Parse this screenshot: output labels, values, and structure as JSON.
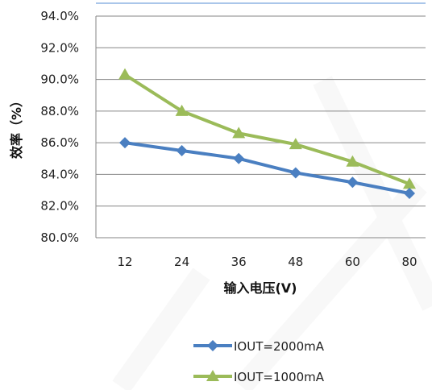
{
  "chart_data": {
    "type": "line",
    "categories": [
      "12",
      "24",
      "36",
      "48",
      "60",
      "80"
    ],
    "series": [
      {
        "name": "IOUT=2000mA",
        "values": [
          86.0,
          85.5,
          85.0,
          84.1,
          83.5,
          82.8
        ],
        "color": "#4a7fc1",
        "marker": "diamond"
      },
      {
        "name": "IOUT=1000mA",
        "values": [
          90.3,
          88.0,
          86.6,
          85.9,
          84.8,
          83.4
        ],
        "color": "#9bbb59",
        "marker": "triangle"
      }
    ],
    "xlabel": "输入电压(V)",
    "ylabel": "效率（%）",
    "ylim": [
      80,
      94
    ],
    "yticks": [
      "80.0%",
      "82.0%",
      "84.0%",
      "86.0%",
      "88.0%",
      "90.0%",
      "92.0%",
      "94.0%"
    ],
    "grid": true,
    "legend": "bottom"
  }
}
